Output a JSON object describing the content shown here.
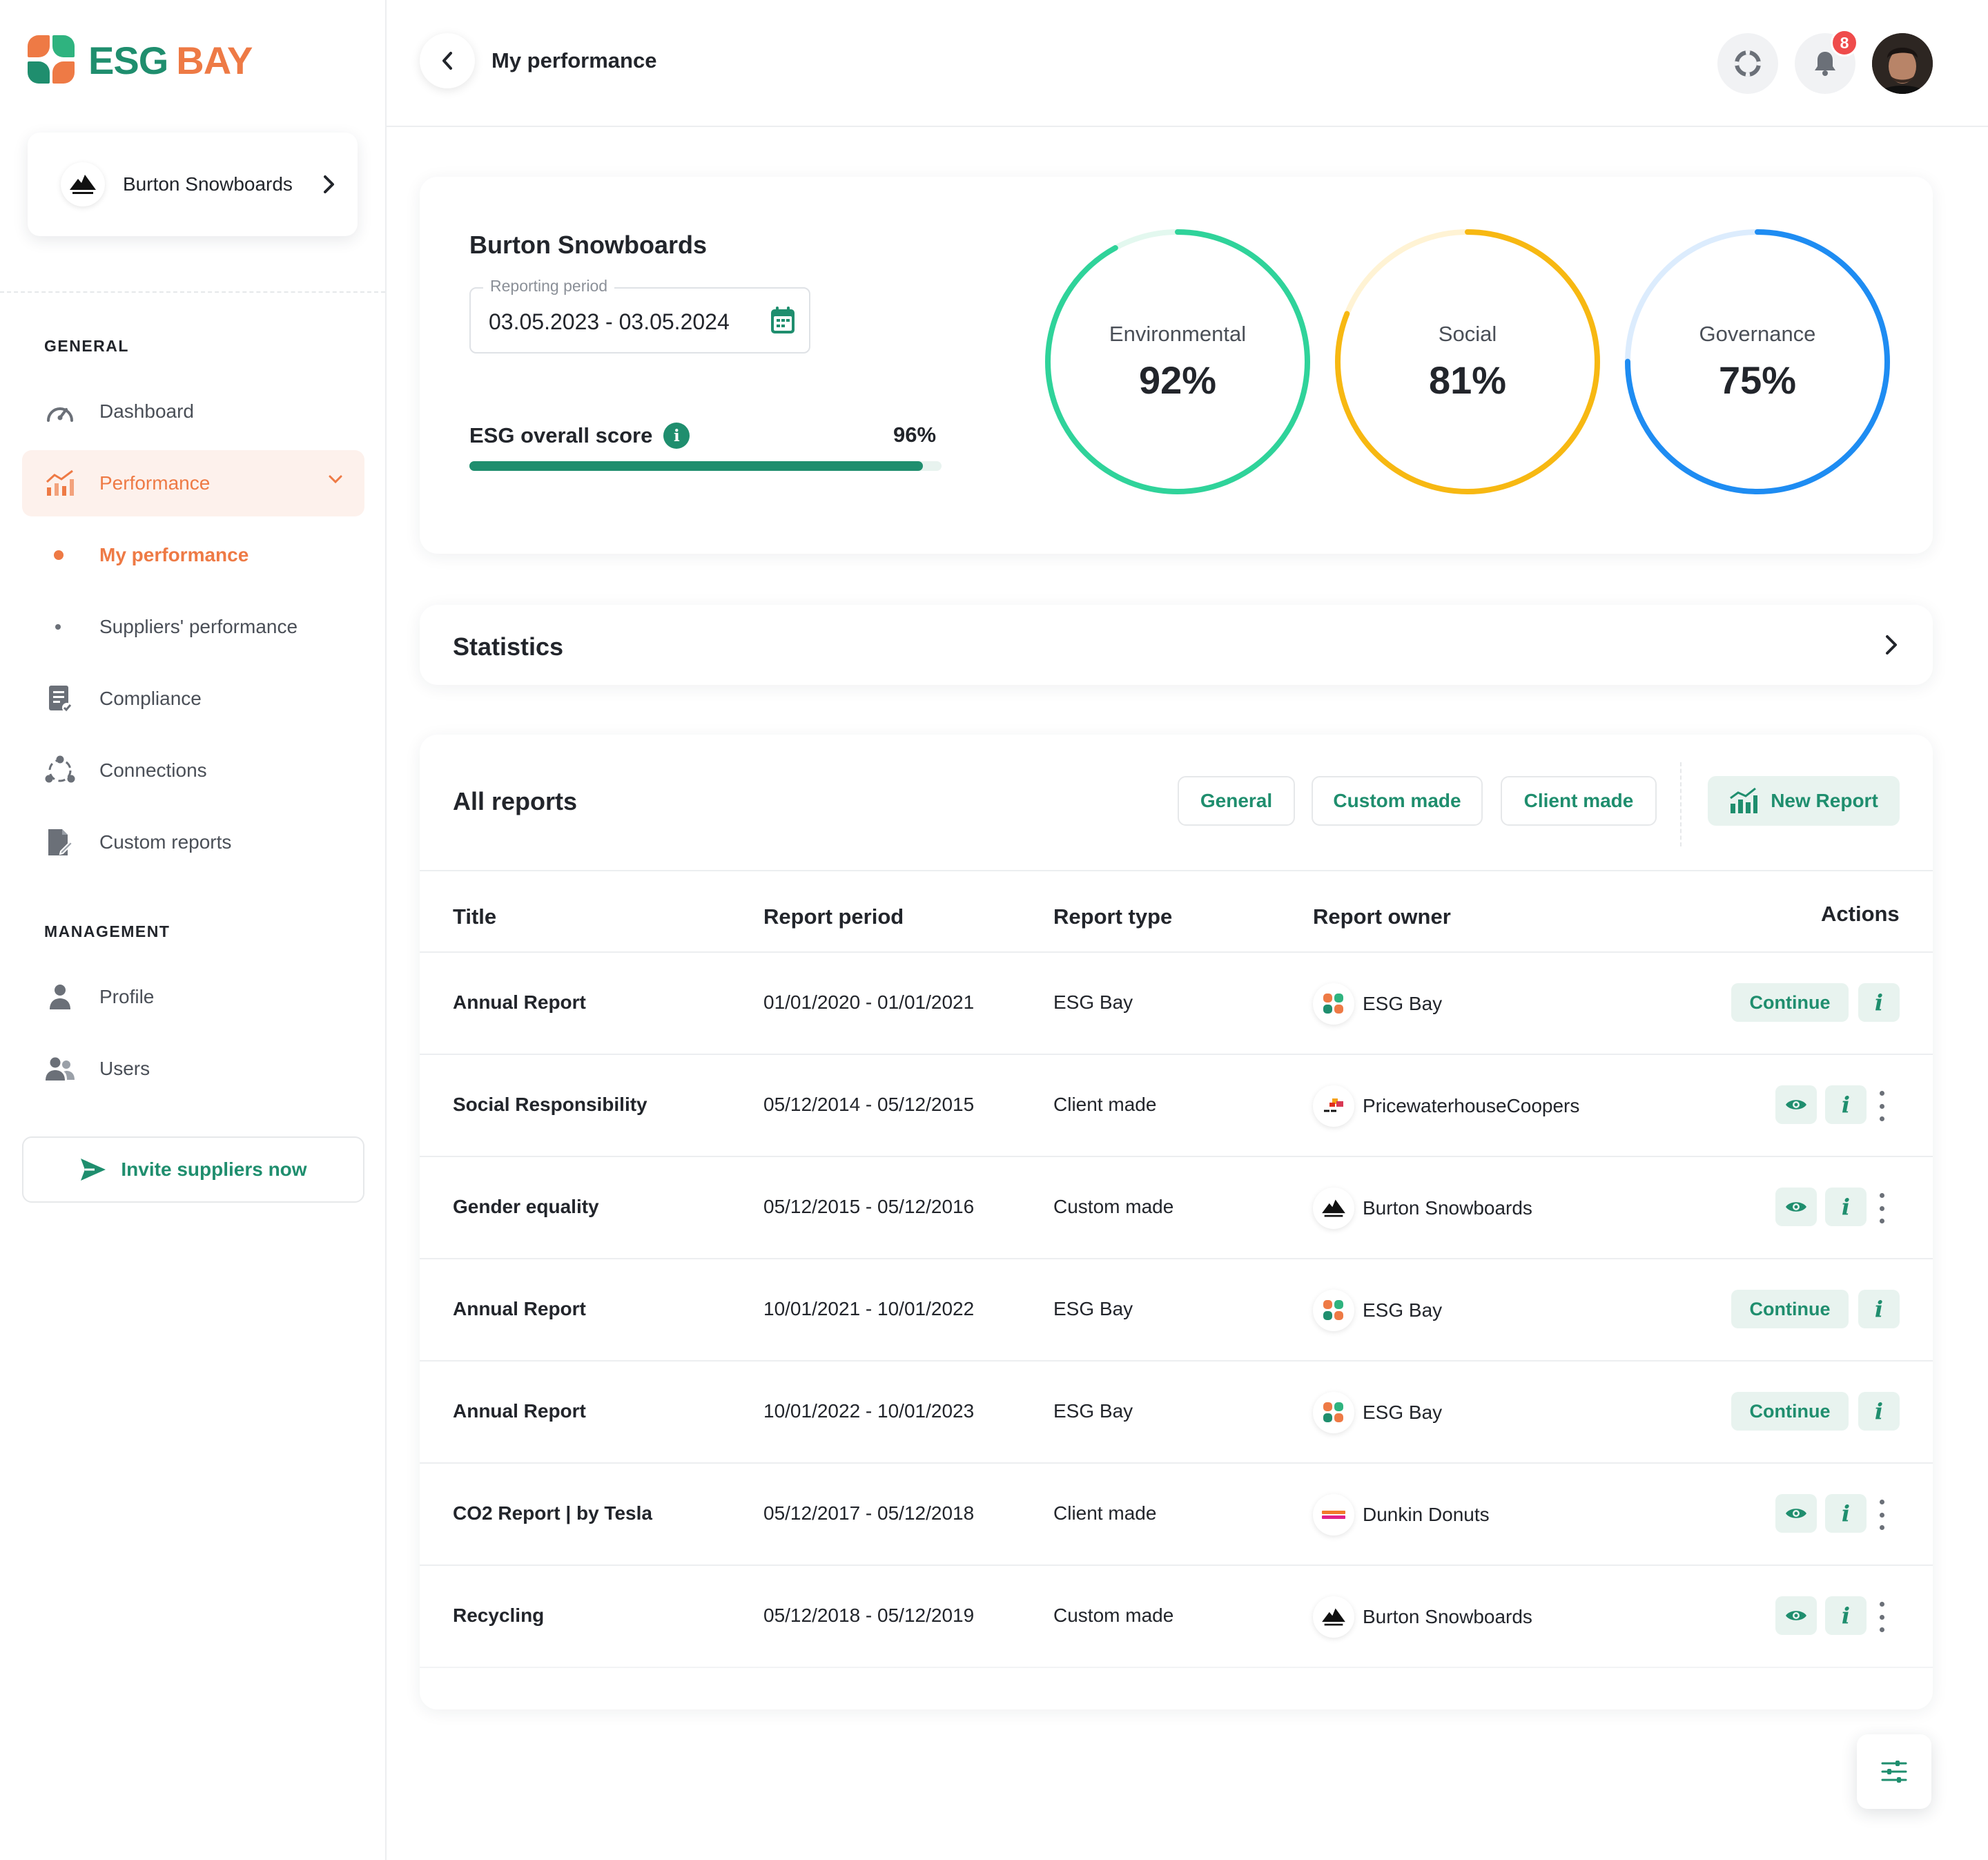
{
  "brand": {
    "part1": "ESG",
    "part2": "BAY",
    "green": "#1f8e6e",
    "orange": "#ee7a45"
  },
  "company_switcher": {
    "name": "Burton Snowboards"
  },
  "sidebar": {
    "general_label": "GENERAL",
    "management_label": "MANAGEMENT",
    "items": {
      "dashboard": "Dashboard",
      "performance": "Performance",
      "my_performance": "My performance",
      "suppliers_performance": "Suppliers' performance",
      "compliance": "Compliance",
      "connections": "Connections",
      "custom_reports": "Custom reports",
      "profile": "Profile",
      "users": "Users"
    },
    "invite_label": "Invite suppliers now"
  },
  "header": {
    "title": "My performance",
    "notification_count": "8"
  },
  "score_card": {
    "company": "Burton Snowboards",
    "period_label": "Reporting period",
    "period_value": "03.05.2023 - 03.05.2024",
    "overall_label": "ESG overall score",
    "overall_value": "96%",
    "overall_fraction": 0.96,
    "rings": [
      {
        "label": "Environmental",
        "value": "92%",
        "fraction": 0.92,
        "color": "#2fd39a",
        "track": "#e3f8ef"
      },
      {
        "label": "Social",
        "value": "81%",
        "fraction": 0.81,
        "color": "#f7b812",
        "track": "#fff3d4"
      },
      {
        "label": "Governance",
        "value": "75%",
        "fraction": 0.75,
        "color": "#1e8cf2",
        "track": "#dcecfd"
      }
    ]
  },
  "statistics": {
    "title": "Statistics"
  },
  "reports": {
    "title": "All reports",
    "filters": {
      "general": "General",
      "custom": "Custom made",
      "client": "Client made"
    },
    "new_report": "New Report",
    "columns": {
      "title": "Title",
      "period": "Report period",
      "type": "Report type",
      "owner": "Report owner",
      "actions": "Actions"
    },
    "continue_label": "Continue",
    "rows": [
      {
        "title": "Annual Report",
        "period": "01/01/2020 - 01/01/2021",
        "type": "ESG Bay",
        "owner": "ESG Bay"
      },
      {
        "title": "Social Responsibility",
        "period": "05/12/2014 - 05/12/2015",
        "type": "Client made",
        "owner": "PricewaterhouseCoopers"
      },
      {
        "title": "Gender equality",
        "period": "05/12/2015 - 05/12/2016",
        "type": "Custom made",
        "owner": "Burton Snowboards"
      },
      {
        "title": "Annual Report",
        "period": "10/01/2021 - 10/01/2022",
        "type": "ESG Bay",
        "owner": "ESG Bay"
      },
      {
        "title": "Annual Report",
        "period": "10/01/2022 - 10/01/2023",
        "type": "ESG Bay",
        "owner": "ESG Bay"
      },
      {
        "title": "CO2 Report | by Tesla",
        "period": "05/12/2017 - 05/12/2018",
        "type": "Client made",
        "owner": "Dunkin Donuts"
      },
      {
        "title": "Recycling",
        "period": "05/12/2018 - 05/12/2019",
        "type": "Custom made",
        "owner": "Burton Snowboards"
      }
    ]
  }
}
